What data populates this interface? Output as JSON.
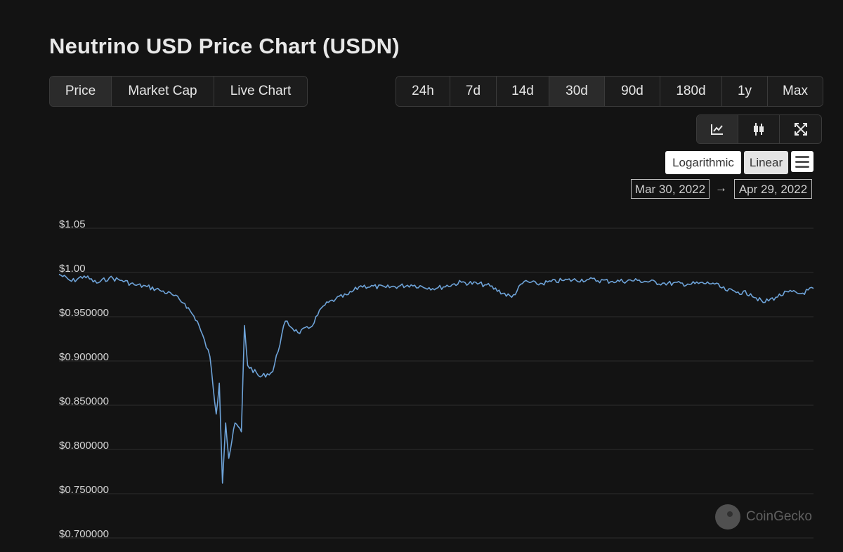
{
  "title": "Neutrino USD Price Chart (USDN)",
  "tabs": [
    {
      "label": "Price",
      "active": true
    },
    {
      "label": "Market Cap",
      "active": false
    },
    {
      "label": "Live Chart",
      "active": false
    }
  ],
  "ranges": [
    {
      "label": "24h",
      "active": false
    },
    {
      "label": "7d",
      "active": false
    },
    {
      "label": "14d",
      "active": false
    },
    {
      "label": "30d",
      "active": true
    },
    {
      "label": "90d",
      "active": false
    },
    {
      "label": "180d",
      "active": false
    },
    {
      "label": "1y",
      "active": false
    },
    {
      "label": "Max",
      "active": false
    }
  ],
  "chart_types": [
    {
      "icon": "line-chart-icon",
      "active": true
    },
    {
      "icon": "candlestick-icon",
      "active": false
    },
    {
      "icon": "fullscreen-icon",
      "active": false
    }
  ],
  "scale": {
    "logarithmic": "Logarithmic",
    "linear": "Linear",
    "active": "Linear"
  },
  "menu_icon": "hamburger-menu-icon",
  "date_range": {
    "from": "Mar 30, 2022",
    "arrow": "→",
    "to": "Apr 29, 2022"
  },
  "watermark": "CoinGecko",
  "colors": {
    "background": "#131313",
    "line": "#6ea3d8",
    "grid": "#2c2c2c"
  },
  "chart_data": {
    "type": "line",
    "ylim": [
      0.7,
      1.05
    ],
    "yticks": [
      1.05,
      1.0,
      0.95,
      0.9,
      0.85,
      0.8,
      0.75,
      0.7
    ],
    "ytick_labels": [
      "$1.05",
      "$1.00",
      "$0.950000",
      "$0.900000",
      "$0.850000",
      "$0.800000",
      "$0.750000",
      "$0.700000"
    ],
    "xlim": [
      "2022-03-30",
      "2022-04-29"
    ],
    "grid": true,
    "series": [
      {
        "points": [
          [
            "2022-03-30",
            0.998
          ],
          [
            "2022-03-30T12:00",
            0.99
          ],
          [
            "2022-03-31",
            0.996
          ],
          [
            "2022-03-31T12:00",
            0.988
          ],
          [
            "2022-04-01",
            0.994
          ],
          [
            "2022-04-01T12:00",
            0.991
          ],
          [
            "2022-04-02",
            0.986
          ],
          [
            "2022-04-02T12:00",
            0.984
          ],
          [
            "2022-04-03",
            0.98
          ],
          [
            "2022-04-03T12:00",
            0.975
          ],
          [
            "2022-04-04",
            0.965
          ],
          [
            "2022-04-04T12:00",
            0.945
          ],
          [
            "2022-04-05",
            0.905
          ],
          [
            "2022-04-05T06:00",
            0.84
          ],
          [
            "2022-04-05T09:00",
            0.875
          ],
          [
            "2022-04-05T12:00",
            0.762
          ],
          [
            "2022-04-05T15:00",
            0.83
          ],
          [
            "2022-04-05T18:00",
            0.79
          ],
          [
            "2022-04-06",
            0.83
          ],
          [
            "2022-04-06T06:00",
            0.82
          ],
          [
            "2022-04-06T09:00",
            0.94
          ],
          [
            "2022-04-06T12:00",
            0.895
          ],
          [
            "2022-04-07",
            0.882
          ],
          [
            "2022-04-07T12:00",
            0.888
          ],
          [
            "2022-04-08",
            0.945
          ],
          [
            "2022-04-08T12:00",
            0.932
          ],
          [
            "2022-04-09",
            0.938
          ],
          [
            "2022-04-09T12:00",
            0.962
          ],
          [
            "2022-04-10",
            0.97
          ],
          [
            "2022-04-10T12:00",
            0.975
          ],
          [
            "2022-04-11",
            0.985
          ],
          [
            "2022-04-12",
            0.983
          ],
          [
            "2022-04-13",
            0.986
          ],
          [
            "2022-04-14",
            0.982
          ],
          [
            "2022-04-15",
            0.989
          ],
          [
            "2022-04-16",
            0.986
          ],
          [
            "2022-04-17",
            0.972
          ],
          [
            "2022-04-17T12:00",
            0.99
          ],
          [
            "2022-04-18",
            0.987
          ],
          [
            "2022-04-19",
            0.991
          ],
          [
            "2022-04-20",
            0.992
          ],
          [
            "2022-04-21",
            0.99
          ],
          [
            "2022-04-22",
            0.991
          ],
          [
            "2022-04-23",
            0.988
          ],
          [
            "2022-04-24",
            0.987
          ],
          [
            "2022-04-25",
            0.988
          ],
          [
            "2022-04-25T12:00",
            0.98
          ],
          [
            "2022-04-26",
            0.978
          ],
          [
            "2022-04-26T12:00",
            0.976
          ],
          [
            "2022-04-27",
            0.966
          ],
          [
            "2022-04-27T12:00",
            0.972
          ],
          [
            "2022-04-28",
            0.978
          ],
          [
            "2022-04-28T12:00",
            0.976
          ],
          [
            "2022-04-29",
            0.982
          ]
        ]
      }
    ]
  }
}
